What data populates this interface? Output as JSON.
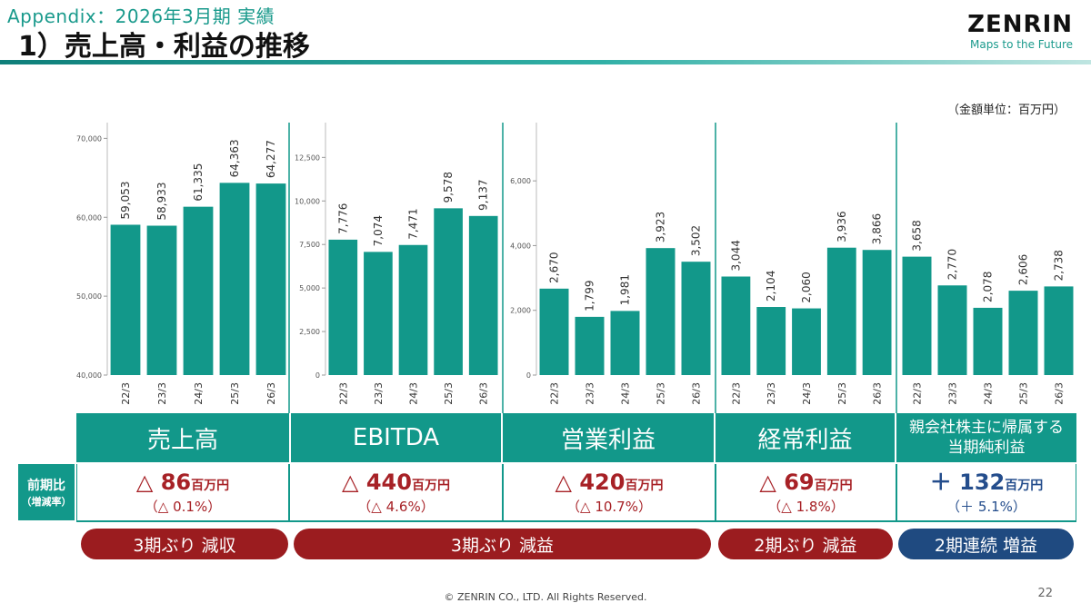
{
  "header": {
    "subtitle": "Appendix：2026年3月期 実績",
    "title": "1）売上高・利益の推移",
    "logo": "ZENRIN",
    "tagline": "Maps to the Future"
  },
  "unit_note": "（金額単位：百万円）",
  "chart_data": [
    {
      "type": "bar",
      "title": "",
      "categories": [
        "22/3",
        "23/3",
        "24/3",
        "25/3",
        "26/3"
      ],
      "values": [
        59053,
        58933,
        61335,
        64363,
        64277
      ],
      "labels": [
        "59,053",
        "58,933",
        "61,335",
        "64,363",
        "64,277"
      ],
      "ylim": [
        40000,
        72000
      ],
      "yticks": [
        40000,
        50000,
        60000,
        70000
      ],
      "ytick_labels": [
        "40,000",
        "50,000",
        "60,000",
        "70,000"
      ],
      "grid": false,
      "color": "#12988a"
    },
    {
      "type": "bar",
      "title": "",
      "categories": [
        "22/3",
        "23/3",
        "24/3",
        "25/3",
        "26/3"
      ],
      "values": [
        7776,
        7074,
        7471,
        9578,
        9137
      ],
      "labels": [
        "7,776",
        "7,074",
        "7,471",
        "9,578",
        "9,137"
      ],
      "ylim": [
        0,
        14500
      ],
      "yticks": [
        0,
        2500,
        5000,
        7500,
        10000,
        12500
      ],
      "ytick_labels": [
        "0",
        "2,500",
        "5,000",
        "7,500",
        "10,000",
        "12,500"
      ],
      "grid": false,
      "color": "#12988a"
    },
    {
      "type": "bar",
      "title": "",
      "categories": [
        "22/3",
        "23/3",
        "24/3",
        "25/3",
        "26/3"
      ],
      "values": [
        2670,
        1799,
        1981,
        3923,
        3502
      ],
      "labels": [
        "2,670",
        "1,799",
        "1,981",
        "3,923",
        "3,502"
      ],
      "ylim": [
        0,
        7800
      ],
      "yticks": [
        0,
        2000,
        4000,
        6000
      ],
      "ytick_labels": [
        "0",
        "2,000",
        "4,000",
        "6,000"
      ],
      "grid": false,
      "color": "#12988a"
    },
    {
      "type": "bar",
      "title": "",
      "categories": [
        "22/3",
        "23/3",
        "24/3",
        "25/3",
        "26/3"
      ],
      "values": [
        3044,
        2104,
        2060,
        3936,
        3866
      ],
      "labels": [
        "3,044",
        "2,104",
        "2,060",
        "3,936",
        "3,866"
      ],
      "ylim": [
        0,
        7800
      ],
      "yticks": [],
      "ytick_labels": [],
      "grid": false,
      "color": "#12988a"
    },
    {
      "type": "bar",
      "title": "",
      "categories": [
        "22/3",
        "23/3",
        "24/3",
        "25/3",
        "26/3"
      ],
      "values": [
        3658,
        2770,
        2078,
        2606,
        2738
      ],
      "labels": [
        "3,658",
        "2,770",
        "2,078",
        "2,606",
        "2,738"
      ],
      "ylim": [
        0,
        7800
      ],
      "yticks": [],
      "ytick_labels": [],
      "grid": false,
      "color": "#12988a"
    }
  ],
  "categories_row": [
    {
      "label": "売上高"
    },
    {
      "label": "EBITDA"
    },
    {
      "label": "営業利益"
    },
    {
      "label": "経常利益"
    },
    {
      "label_line1": "親会社株主に帰属する",
      "label_line2": "当期純利益"
    }
  ],
  "yoy": {
    "label_line1": "前期比",
    "label_line2": "（増減率）",
    "unit": "百万円",
    "items": [
      {
        "sign": "△",
        "value": "86",
        "pct": "（△ 0.1%）",
        "tone": "neg"
      },
      {
        "sign": "△",
        "value": "440",
        "pct": "（△ 4.6%）",
        "tone": "neg"
      },
      {
        "sign": "△",
        "value": "420",
        "pct": "（△ 10.7%）",
        "tone": "neg"
      },
      {
        "sign": "△",
        "value": "69",
        "pct": "（△ 1.8%）",
        "tone": "neg"
      },
      {
        "sign": "＋",
        "value": "132",
        "pct": "（＋ 5.1%）",
        "tone": "pos"
      }
    ]
  },
  "badges": [
    {
      "label": "3期ぶり 減収",
      "color": "red"
    },
    {
      "label": "3期ぶり 減益",
      "color": "red"
    },
    {
      "label": "2期ぶり 減益",
      "color": "red"
    },
    {
      "label": "2期連続 増益",
      "color": "blue"
    }
  ],
  "footer": "© ZENRIN CO., LTD. All Rights Reserved.",
  "page_number": "22",
  "colors": {
    "bar": "#12988a",
    "negative": "#a72126",
    "positive": "#244d8c",
    "accent": "#1a9a8c"
  }
}
